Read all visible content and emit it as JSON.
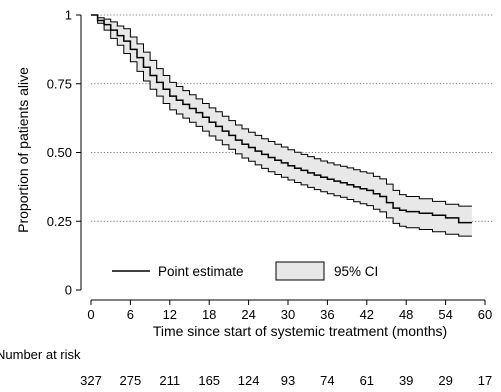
{
  "chart_data": {
    "type": "line",
    "xlabel": "Time since start of systemic treatment (months)",
    "ylabel": "Proportion of patients alive",
    "xlim": [
      0,
      60
    ],
    "ylim": [
      0,
      1
    ],
    "x_ticks": [
      0,
      6,
      12,
      18,
      24,
      30,
      36,
      42,
      48,
      54,
      60
    ],
    "y_ticks": [
      {
        "value": 0,
        "label": "0"
      },
      {
        "value": 0.25,
        "label": "0.25"
      },
      {
        "value": 0.5,
        "label": "0.50"
      },
      {
        "value": 0.75,
        "label": "0.75"
      },
      {
        "value": 1,
        "label": "1"
      }
    ],
    "grid": "horizontal dotted",
    "legend": {
      "placement": "bottom-center",
      "entries": [
        "Point estimate",
        "95% CI"
      ]
    },
    "series": [
      {
        "name": "Point estimate",
        "x": [
          0,
          1,
          2,
          3,
          4,
          5,
          6,
          7,
          8,
          9,
          10,
          11,
          12,
          13,
          14,
          15,
          16,
          17,
          18,
          19,
          20,
          21,
          22,
          23,
          24,
          25,
          26,
          27,
          28,
          29,
          30,
          31,
          32,
          33,
          34,
          35,
          36,
          37,
          38,
          39,
          40,
          41,
          42,
          43,
          44,
          45,
          46,
          47,
          48,
          50,
          52,
          54,
          56,
          58
        ],
        "y": [
          1.0,
          0.98,
          0.965,
          0.945,
          0.925,
          0.905,
          0.875,
          0.845,
          0.81,
          0.78,
          0.755,
          0.73,
          0.705,
          0.69,
          0.675,
          0.66,
          0.645,
          0.628,
          0.61,
          0.595,
          0.578,
          0.562,
          0.545,
          0.53,
          0.518,
          0.505,
          0.493,
          0.482,
          0.472,
          0.462,
          0.452,
          0.443,
          0.435,
          0.426,
          0.418,
          0.41,
          0.403,
          0.396,
          0.39,
          0.383,
          0.375,
          0.368,
          0.362,
          0.35,
          0.34,
          0.318,
          0.298,
          0.29,
          0.285,
          0.279,
          0.272,
          0.262,
          0.245,
          0.245
        ]
      },
      {
        "name": "95% CI",
        "x": [
          0,
          1,
          2,
          3,
          4,
          5,
          6,
          7,
          8,
          9,
          10,
          11,
          12,
          13,
          14,
          15,
          16,
          17,
          18,
          19,
          20,
          21,
          22,
          23,
          24,
          25,
          26,
          27,
          28,
          29,
          30,
          31,
          32,
          33,
          34,
          35,
          36,
          37,
          38,
          39,
          40,
          41,
          42,
          43,
          44,
          45,
          46,
          47,
          48,
          50,
          52,
          54,
          56,
          58
        ],
        "upper": [
          1.0,
          0.99,
          0.985,
          0.975,
          0.96,
          0.95,
          0.92,
          0.895,
          0.865,
          0.835,
          0.805,
          0.78,
          0.755,
          0.74,
          0.725,
          0.71,
          0.695,
          0.678,
          0.662,
          0.648,
          0.632,
          0.616,
          0.6,
          0.586,
          0.574,
          0.562,
          0.55,
          0.54,
          0.53,
          0.52,
          0.51,
          0.501,
          0.493,
          0.485,
          0.477,
          0.469,
          0.462,
          0.455,
          0.45,
          0.444,
          0.437,
          0.43,
          0.425,
          0.413,
          0.404,
          0.385,
          0.362,
          0.347,
          0.34,
          0.332,
          0.322,
          0.312,
          0.305,
          0.305
        ],
        "lower": [
          1.0,
          0.97,
          0.945,
          0.915,
          0.89,
          0.86,
          0.83,
          0.795,
          0.76,
          0.73,
          0.705,
          0.678,
          0.655,
          0.64,
          0.625,
          0.61,
          0.595,
          0.578,
          0.56,
          0.545,
          0.528,
          0.512,
          0.495,
          0.48,
          0.468,
          0.455,
          0.442,
          0.43,
          0.42,
          0.41,
          0.4,
          0.391,
          0.382,
          0.373,
          0.365,
          0.357,
          0.35,
          0.343,
          0.337,
          0.329,
          0.321,
          0.314,
          0.307,
          0.294,
          0.284,
          0.262,
          0.242,
          0.232,
          0.226,
          0.22,
          0.212,
          0.203,
          0.196,
          0.196
        ]
      }
    ],
    "risk_table": {
      "title": "Number at risk",
      "x": [
        0,
        6,
        12,
        18,
        24,
        30,
        36,
        42,
        48,
        54,
        60
      ],
      "values": [
        327,
        275,
        211,
        165,
        124,
        93,
        74,
        61,
        39,
        29,
        17
      ]
    },
    "colors": {
      "line": "#000000",
      "ci_fill": "#e8e8e8",
      "grid": "#555555"
    }
  }
}
